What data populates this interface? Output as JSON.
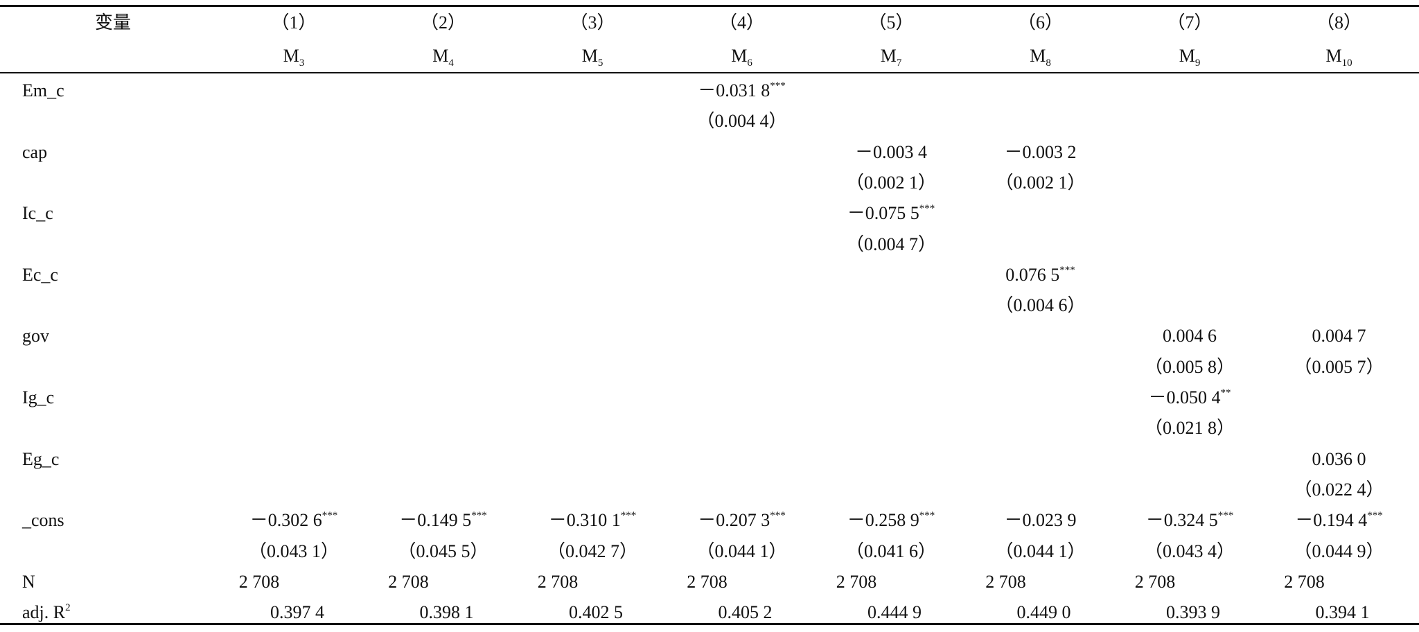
{
  "header": {
    "var_label": "变量",
    "columns": [
      {
        "number": "（1）",
        "model": "M",
        "sub": "3"
      },
      {
        "number": "（2）",
        "model": "M",
        "sub": "4"
      },
      {
        "number": "（3）",
        "model": "M",
        "sub": "5"
      },
      {
        "number": "（4）",
        "model": "M",
        "sub": "6"
      },
      {
        "number": "（5）",
        "model": "M",
        "sub": "7"
      },
      {
        "number": "（6）",
        "model": "M",
        "sub": "8"
      },
      {
        "number": "（7）",
        "model": "M",
        "sub": "9"
      },
      {
        "number": "（8）",
        "model": "M",
        "sub": "10"
      }
    ]
  },
  "rows": [
    {
      "label": "Em_c",
      "cells": [
        null,
        null,
        null,
        {
          "coef": "－0.031 8",
          "stars": "***",
          "se": "（0.004 4）"
        },
        null,
        null,
        null,
        null
      ]
    },
    {
      "label": "cap",
      "cells": [
        null,
        null,
        null,
        null,
        {
          "coef": "－0.003 4",
          "se": "（0.002 1）"
        },
        {
          "coef": "－0.003 2",
          "se": "（0.002 1）"
        },
        null,
        null
      ]
    },
    {
      "label": "Ic_c",
      "cells": [
        null,
        null,
        null,
        null,
        {
          "coef": "－0.075 5",
          "stars": "***",
          "se": "（0.004 7）"
        },
        null,
        null,
        null
      ]
    },
    {
      "label": "Ec_c",
      "cells": [
        null,
        null,
        null,
        null,
        null,
        {
          "coef": "0.076 5",
          "stars": "***",
          "se": "（0.004 6）"
        },
        null,
        null
      ]
    },
    {
      "label": "gov",
      "cells": [
        null,
        null,
        null,
        null,
        null,
        null,
        {
          "coef": "0.004 6",
          "se": "（0.005 8）"
        },
        {
          "coef": "0.004 7",
          "se": "（0.005 7）"
        }
      ]
    },
    {
      "label": "Ig_c",
      "cells": [
        null,
        null,
        null,
        null,
        null,
        null,
        {
          "coef": "－0.050 4",
          "stars": "**",
          "se": "（0.021 8）"
        },
        null
      ]
    },
    {
      "label": "Eg_c",
      "cells": [
        null,
        null,
        null,
        null,
        null,
        null,
        null,
        {
          "coef": "0.036 0",
          "se": "（0.022 4）"
        }
      ]
    },
    {
      "label": "_cons",
      "cells": [
        {
          "coef": "－0.302 6",
          "stars": "***",
          "se": "（0.043 1）"
        },
        {
          "coef": "－0.149 5",
          "stars": "***",
          "se": "（0.045 5）"
        },
        {
          "coef": "－0.310 1",
          "stars": "***",
          "se": "（0.042 7）"
        },
        {
          "coef": "－0.207 3",
          "stars": "***",
          "se": "（0.044 1）"
        },
        {
          "coef": "－0.258 9",
          "stars": "***",
          "se": "（0.041 6）"
        },
        {
          "coef": "－0.023 9",
          "se": "（0.044 1）"
        },
        {
          "coef": "－0.324 5",
          "stars": "***",
          "se": "（0.043 4）"
        },
        {
          "coef": "－0.194 4",
          "stars": "***",
          "se": "（0.044 9）"
        }
      ]
    }
  ],
  "n_row": {
    "label": "N",
    "values": [
      "2 708",
      "2 708",
      "2 708",
      "2 708",
      "2 708",
      "2 708",
      "2 708",
      "2 708"
    ]
  },
  "r2_row": {
    "label": "adj. R",
    "label_sup": "2",
    "values": [
      "0.397 4",
      "0.398 1",
      "0.402 5",
      "0.405 2",
      "0.444 9",
      "0.449 0",
      "0.393 9",
      "0.394 1"
    ]
  }
}
